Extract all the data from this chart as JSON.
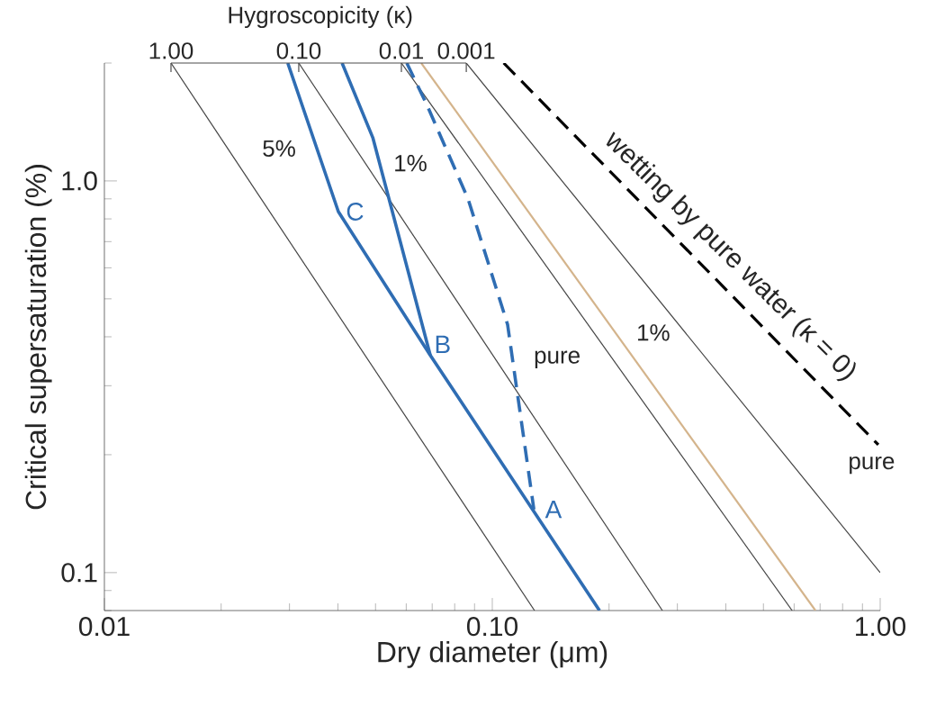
{
  "chart_data": {
    "type": "line",
    "xlabel": "Dry diameter (μm)",
    "ylabel": "Critical supersaturation (%)",
    "log": "xy",
    "marker": "none",
    "xlim": [
      0.01,
      1
    ],
    "ylim": [
      0.08,
      2
    ],
    "xticks": [
      0.01,
      {
        "value": 0.1,
        "label": "0.10"
      },
      {
        "value": 1,
        "label": "1.00"
      }
    ],
    "yticks": [
      0.1,
      {
        "value": 1,
        "label": "1.0"
      }
    ],
    "series": [
      {
        "color": "#444444",
        "x": [
          0.01485,
          0.1285
        ],
        "values": [
          2,
          0.08
        ]
      },
      {
        "color": "#444444",
        "x": [
          0.0317,
          0.2745
        ],
        "values": [
          2,
          0.08
        ]
      },
      {
        "color": "#444444",
        "x": [
          0.0583,
          0.593
        ],
        "values": [
          2,
          0.08
        ]
      },
      {
        "color": "#444444",
        "x": [
          0.0857,
          1.0
        ],
        "values": [
          2,
          0.1
        ]
      },
      {
        "color": "#000000",
        "line_style": "dashed",
        "x": [
          0.107,
          0.989
        ],
        "values": [
          2,
          0.212
        ]
      },
      {
        "color": "#d4b48c",
        "x": [
          0.0656,
          0.681
        ],
        "values": [
          2,
          0.08
        ]
      },
      {
        "color": "#2f6db3",
        "x": [
          0.0297,
          0.0401,
          0.0692,
          0.189
        ],
        "values": [
          2,
          0.835,
          0.359,
          0.08
        ]
      },
      {
        "color": "#2f6db3",
        "x": [
          0.041,
          0.0492,
          0.0692
        ],
        "values": [
          2,
          1.29,
          0.359
        ]
      },
      {
        "color": "#2f6db3",
        "line_style": "dashed",
        "x": [
          0.0602,
          0.0677,
          0.0866,
          0.1095,
          0.128
        ],
        "values": [
          2,
          1.57,
          0.9,
          0.43,
          0.145
        ]
      }
    ],
    "annotations": [
      {
        "text": "1.00",
        "x": 0.01485,
        "y": 2
      },
      {
        "text": "0.10",
        "x": 0.0317,
        "y": 2
      },
      {
        "text": "0.01",
        "x": 0.0583,
        "y": 2
      },
      {
        "text": "0.001",
        "x": 0.0857,
        "y": 2
      },
      "Hygroscopicity (κ)",
      "5%",
      "1%",
      {
        "text": "C",
        "x": 0.0401,
        "y": 0.835
      },
      {
        "text": "B",
        "x": 0.0692,
        "y": 0.359
      },
      {
        "text": "A",
        "x": 0.128,
        "y": 0.145
      },
      "pure",
      "1%",
      "pure",
      "wetting by pure water (κ = 0)"
    ]
  }
}
